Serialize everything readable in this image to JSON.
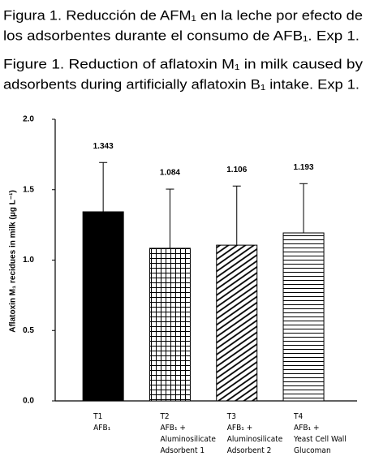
{
  "caption_es": [
    "Figura 1. Reducción de AFM₁ en la leche por efecto de",
    "los adsorbentes durante el consumo de AFB₁. Exp 1."
  ],
  "caption_en": [
    "Figure 1. Reduction of aflatoxin M₁ in milk caused by",
    "adsorbents during artificially aflatoxin B₁ intake. Exp 1."
  ],
  "chart_data": {
    "type": "bar",
    "y_label": "Aflatoxin M₁ recidues in milk (μg L⁻¹)",
    "categories": [
      [
        "T1",
        "AFB₁"
      ],
      [
        "T2",
        "AFB₁ +",
        "Aluminosilicate",
        "Adsorbent 1"
      ],
      [
        "T3",
        "AFB₁ +",
        "Aluminosilicate",
        "Adsorbent 2"
      ],
      [
        "T4",
        "AFB₁ +",
        "Yeast Cell Wall",
        "Glucoman"
      ]
    ],
    "values": [
      1.343,
      1.084,
      1.106,
      1.193
    ],
    "errors": [
      0.35,
      0.42,
      0.42,
      0.35
    ],
    "patterns": [
      "solid",
      "grid",
      "diagonal",
      "horizontal"
    ],
    "color": "#000000",
    "ylim": [
      0,
      2.0
    ],
    "yticks": [
      {
        "value": 0,
        "label": "0.0"
      },
      {
        "value": 0.5,
        "label": "0.5"
      },
      {
        "value": 1.0,
        "label": "1.0"
      },
      {
        "value": 1.5,
        "label": "1.5"
      },
      {
        "value": 2.0,
        "label": "2.0"
      }
    ]
  }
}
